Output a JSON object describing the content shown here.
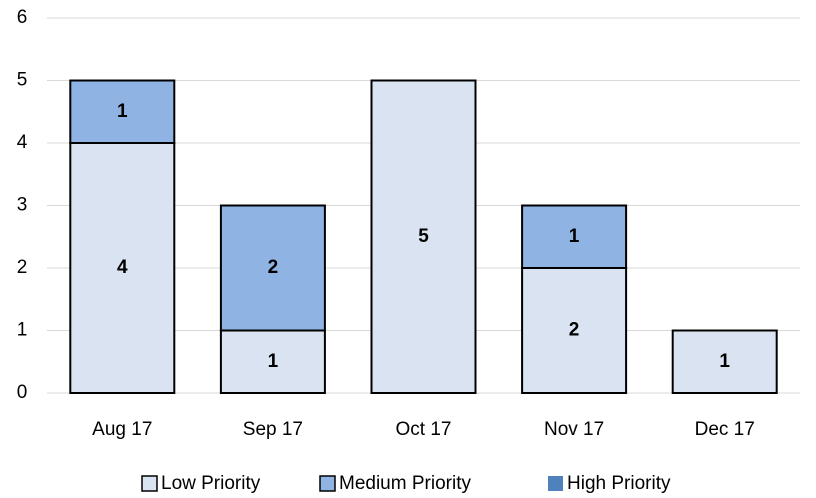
{
  "chart_data": {
    "type": "stacked_bar",
    "categories": [
      "Aug 17",
      "Sep 17",
      "Oct 17",
      "Nov 17",
      "Dec 17"
    ],
    "series": [
      {
        "name": "Low Priority",
        "color": "#dae3f1",
        "values": [
          4,
          1,
          5,
          2,
          1
        ]
      },
      {
        "name": "Medium Priority",
        "color": "#8fb4e3",
        "values": [
          1,
          2,
          null,
          1,
          null
        ]
      },
      {
        "name": "High Priority",
        "color": "#4f81bd",
        "values": [
          null,
          null,
          null,
          null,
          null
        ]
      }
    ],
    "ylim": [
      0,
      6
    ],
    "yticks": [
      0,
      1,
      2,
      3,
      4,
      5,
      6
    ],
    "grid": true,
    "legend": "bottom"
  }
}
